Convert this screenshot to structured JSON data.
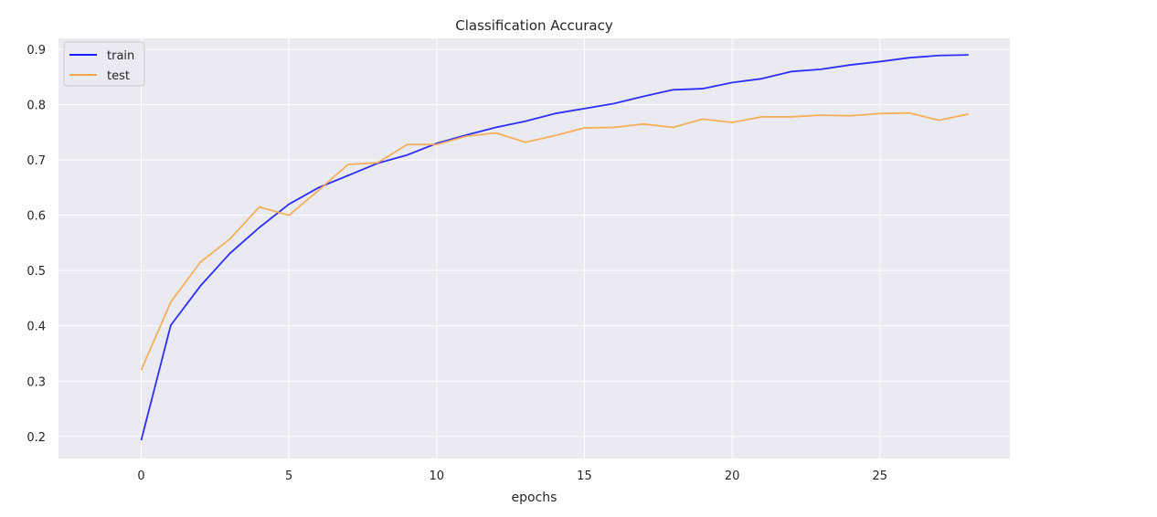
{
  "chart_data": {
    "type": "line",
    "title": "Classification Accuracy",
    "xlabel": "epochs",
    "ylabel": "",
    "xlim": [
      -2.8,
      29.4
    ],
    "ylim": [
      0.16,
      0.92
    ],
    "xticks": [
      0,
      5,
      10,
      15,
      20,
      25
    ],
    "yticks": [
      0.2,
      0.3,
      0.4,
      0.5,
      0.6,
      0.7,
      0.8,
      0.9
    ],
    "grid": true,
    "legend": "top-left",
    "background": "#EAEAF2",
    "x": [
      0,
      1,
      2,
      3,
      4,
      5,
      6,
      7,
      8,
      9,
      10,
      11,
      12,
      13,
      14,
      15,
      16,
      17,
      18,
      19,
      20,
      21,
      22,
      23,
      24,
      25,
      26,
      27,
      28
    ],
    "series": [
      {
        "name": "train",
        "color": "#1a1aff",
        "values": [
          0.193,
          0.401,
          0.472,
          0.531,
          0.578,
          0.62,
          0.65,
          0.672,
          0.694,
          0.709,
          0.73,
          0.745,
          0.759,
          0.77,
          0.784,
          0.793,
          0.802,
          0.815,
          0.827,
          0.829,
          0.84,
          0.847,
          0.86,
          0.864,
          0.872,
          0.878,
          0.885,
          0.889,
          0.89
        ]
      },
      {
        "name": "test",
        "color": "#f5a84a",
        "values": [
          0.32,
          0.443,
          0.515,
          0.557,
          0.615,
          0.6,
          0.645,
          0.692,
          0.695,
          0.728,
          0.728,
          0.743,
          0.749,
          0.732,
          0.744,
          0.758,
          0.759,
          0.765,
          0.759,
          0.774,
          0.768,
          0.778,
          0.778,
          0.781,
          0.78,
          0.784,
          0.785,
          0.772,
          0.783
        ]
      }
    ]
  }
}
